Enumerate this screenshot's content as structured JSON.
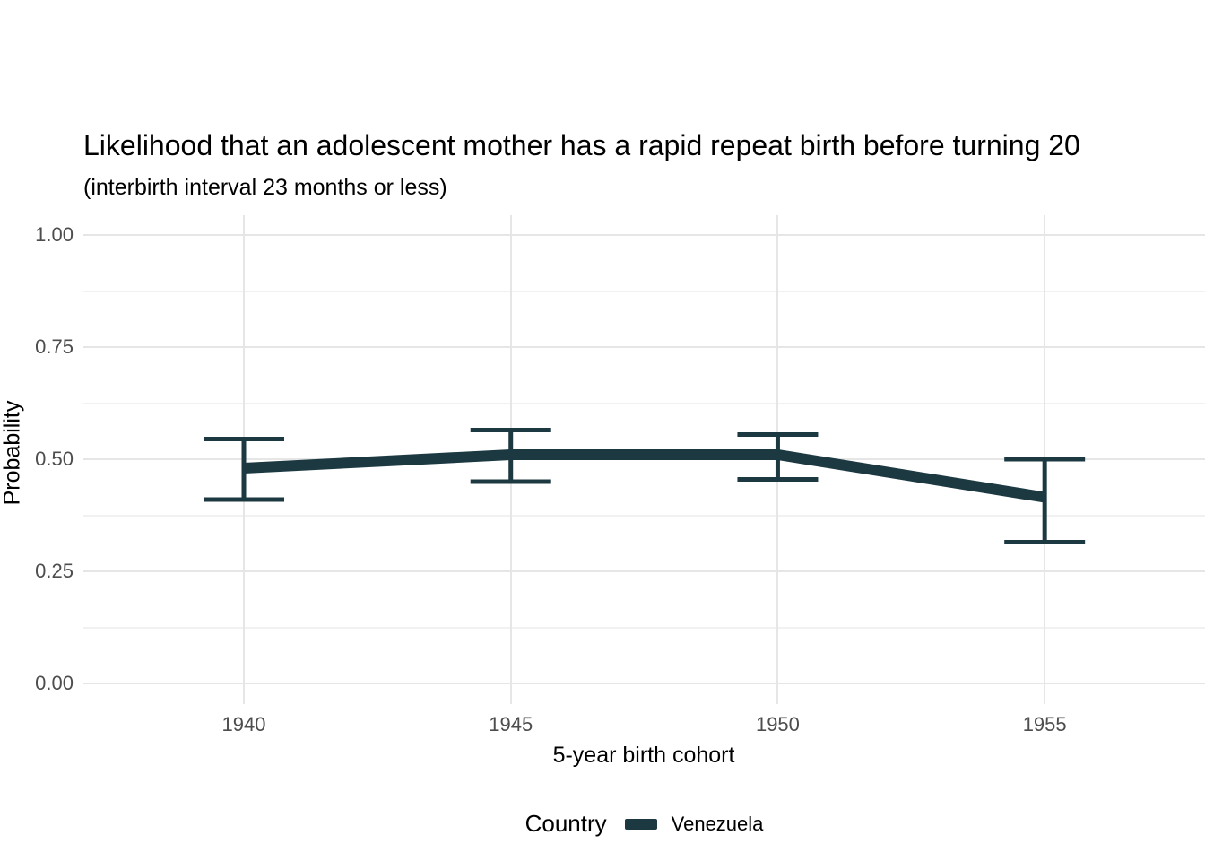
{
  "colors": {
    "series": "#1c3942",
    "grid_major": "#e6e6e6",
    "grid_minor": "#f1f1f1",
    "tick_text": "#4d4d4d",
    "title_text": "#000000",
    "background": "#ffffff"
  },
  "chart_data": {
    "type": "line",
    "title": "Likelihood that an adolescent mother has a rapid repeat birth before turning 20",
    "subtitle": "(interbirth interval 23 months or less)",
    "xlabel": "5-year birth cohort",
    "ylabel": "Probability",
    "x": [
      1940,
      1945,
      1950,
      1955
    ],
    "xtick_labels": [
      "1940",
      "1945",
      "1950",
      "1955"
    ],
    "ytick_values": [
      0.0,
      0.25,
      0.5,
      0.75,
      1.0
    ],
    "ytick_labels": [
      "0.00",
      "0.25",
      "0.50",
      "0.75",
      "1.00"
    ],
    "ylim": [
      0,
      1
    ],
    "grid": "horizontal major+minor, vertical major only",
    "series": [
      {
        "name": "Venezuela",
        "values": [
          0.48,
          0.51,
          0.51,
          0.415
        ],
        "ci_low": [
          0.41,
          0.45,
          0.455,
          0.315
        ],
        "ci_high": [
          0.545,
          0.565,
          0.555,
          0.5
        ],
        "color": "#1c3942"
      }
    ],
    "legend": {
      "title": "Country",
      "entries": [
        "Venezuela"
      ],
      "position": "bottom"
    }
  }
}
